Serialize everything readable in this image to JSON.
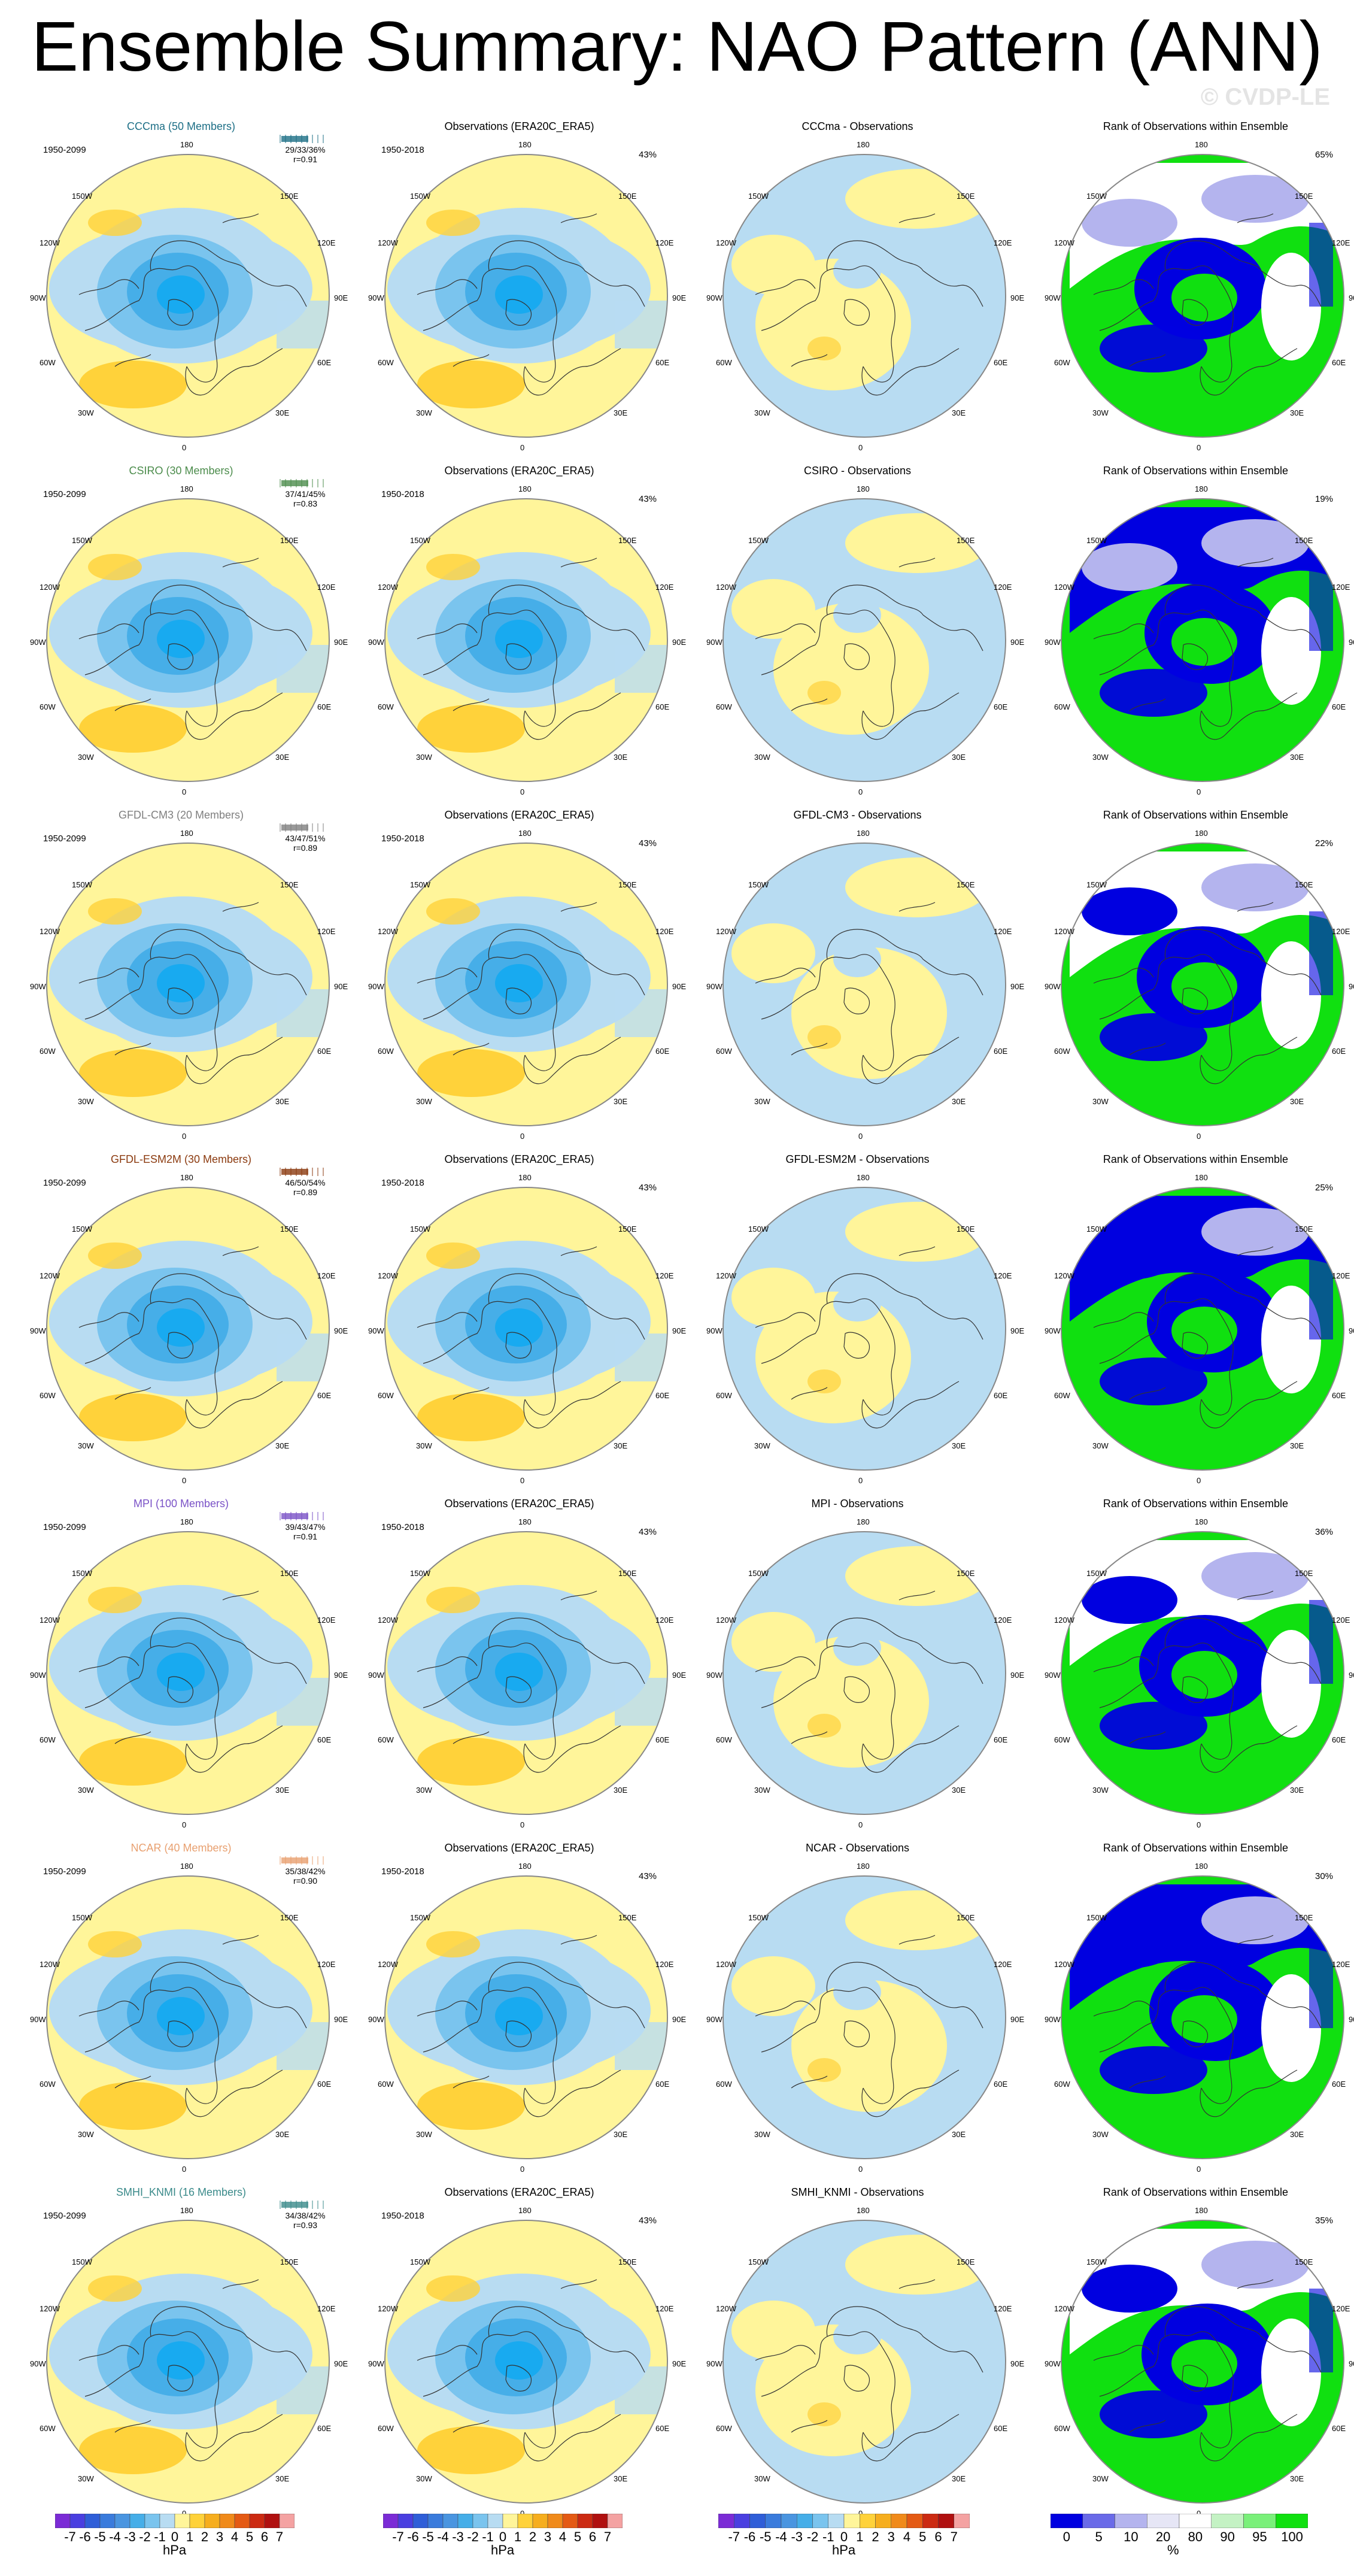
{
  "title": "Ensemble Summary: NAO Pattern (ANN)",
  "watermark": "© CVDP-LE",
  "column_titles": {
    "observations": "Observations (ERA20C_ERA5)",
    "rank": "Rank of Observations within Ensemble"
  },
  "rows": [
    {
      "model_label": "CCCma (50 Members)",
      "diff_title": "CCCma - Observations",
      "model_period": "1950-2099",
      "obs_period": "1950-2018",
      "stats": "29/33/36%",
      "pattern_r": "r=0.91",
      "obs_pct": "43%",
      "rank_pct": "65%",
      "color": "#1d6f86"
    },
    {
      "model_label": "CSIRO (30 Members)",
      "diff_title": "CSIRO - Observations",
      "model_period": "1950-2099",
      "obs_period": "1950-2018",
      "stats": "37/41/45%",
      "pattern_r": "r=0.83",
      "obs_pct": "43%",
      "rank_pct": "19%",
      "color": "#4c8c4c"
    },
    {
      "model_label": "GFDL-CM3 (20 Members)",
      "diff_title": "GFDL-CM3 - Observations",
      "model_period": "1950-2099",
      "obs_period": "1950-2018",
      "stats": "43/47/51%",
      "pattern_r": "r=0.89",
      "obs_pct": "43%",
      "rank_pct": "22%",
      "color": "#7f7f7f"
    },
    {
      "model_label": "GFDL-ESM2M (30 Members)",
      "diff_title": "GFDL-ESM2M - Observations",
      "model_period": "1950-2099",
      "obs_period": "1950-2018",
      "stats": "46/50/54%",
      "pattern_r": "r=0.89",
      "obs_pct": "43%",
      "rank_pct": "25%",
      "color": "#8b3a0f"
    },
    {
      "model_label": "MPI (100 Members)",
      "diff_title": "MPI - Observations",
      "model_period": "1950-2099",
      "obs_period": "1950-2018",
      "stats": "39/43/47%",
      "pattern_r": "r=0.91",
      "obs_pct": "43%",
      "rank_pct": "36%",
      "color": "#7a52c7"
    },
    {
      "model_label": "NCAR (40 Members)",
      "diff_title": "NCAR - Observations",
      "model_period": "1950-2099",
      "obs_period": "1950-2018",
      "stats": "35/38/42%",
      "pattern_r": "r=0.90",
      "obs_pct": "43%",
      "rank_pct": "30%",
      "color": "#e8a070"
    },
    {
      "model_label": "SMHI_KNMI (16 Members)",
      "diff_title": "SMHI_KNMI - Observations",
      "model_period": "1950-2099",
      "obs_period": "1950-2018",
      "stats": "34/38/42%",
      "pattern_r": "r=0.93",
      "obs_pct": "43%",
      "rank_pct": "35%",
      "color": "#3a8a8a"
    }
  ],
  "map_labels": {
    "top": "180",
    "bottom": "0",
    "left": "90W",
    "right": "90E",
    "upper_left": "150W",
    "upper_right": "150E",
    "mid_upper_left": "120W",
    "mid_upper_right": "120E",
    "mid_lower_left": "60W",
    "mid_lower_right": "60E",
    "lower_left": "30W",
    "lower_right": "30E"
  },
  "colorbar_hpa": {
    "ticks": [
      "-7",
      "-6",
      "-5",
      "-4",
      "-3",
      "-2",
      "-1",
      "0",
      "1",
      "2",
      "3",
      "4",
      "5",
      "6",
      "7"
    ],
    "unit": "hPa",
    "colors": [
      "#7b2bd6",
      "#4a3fe0",
      "#2f5ed8",
      "#3a7bdc",
      "#4a95e0",
      "#46aee8",
      "#7ac4ee",
      "#b8dcf2",
      "#fff59a",
      "#ffd23a",
      "#f6ae1e",
      "#f08a1a",
      "#e45a14",
      "#cc2a12",
      "#b01010",
      "#f4a2a2"
    ]
  },
  "colorbar_rank": {
    "ticks": [
      "0",
      "5",
      "10",
      "20",
      "80",
      "90",
      "95",
      "100"
    ],
    "unit": "%",
    "colors": [
      "#0000e0",
      "#6a6ae8",
      "#b4b4ee",
      "#e6e6f6",
      "#ffffff",
      "#c4f2c4",
      "#7af07a",
      "#10e010"
    ]
  },
  "palette": {
    "yellow": "#fff59a",
    "light_blue": "#b8dcf2",
    "mid_blue": "#7ac4ee",
    "blue": "#46aee8",
    "bright_blue": "#18aaf0",
    "orange": "#ffd23a",
    "rank_blue": "#0000e0",
    "rank_green": "#10e010",
    "rank_light": "#b4b4ee"
  }
}
